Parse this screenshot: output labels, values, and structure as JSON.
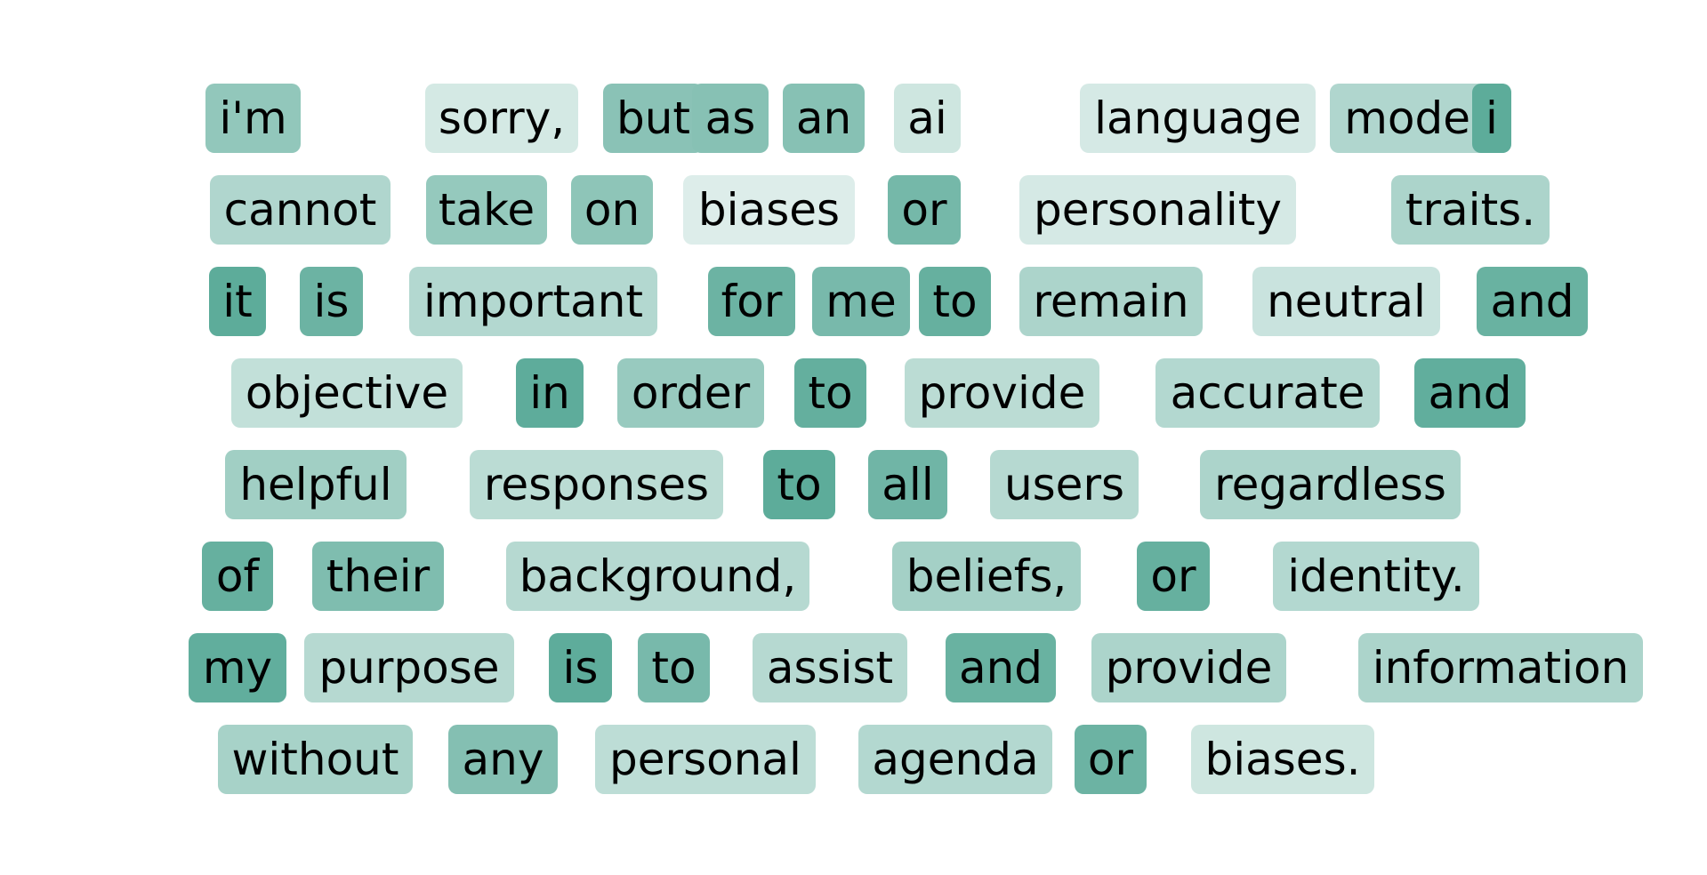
{
  "base_color": "#5aaa98",
  "lines": [
    {
      "tokens": [
        {
          "text": "i'm",
          "weight": 0.62
        },
        {
          "text": "sorry,",
          "weight": 0.18
        },
        {
          "text": "but",
          "weight": 0.68
        },
        {
          "text": "as",
          "weight": 0.7
        },
        {
          "text": "an",
          "weight": 0.7
        },
        {
          "text": "ai",
          "weight": 0.22
        },
        {
          "text": "language",
          "weight": 0.17
        },
        {
          "text": "model,",
          "weight": 0.42
        },
        {
          "text": "i",
          "weight": 0.98
        }
      ]
    },
    {
      "tokens": [
        {
          "text": "cannot",
          "weight": 0.42
        },
        {
          "text": "take",
          "weight": 0.6
        },
        {
          "text": "on",
          "weight": 0.65
        },
        {
          "text": "biases",
          "weight": 0.12
        },
        {
          "text": "or",
          "weight": 0.82
        },
        {
          "text": "personality",
          "weight": 0.17
        },
        {
          "text": "traits.",
          "weight": 0.45
        }
      ]
    },
    {
      "tokens": [
        {
          "text": "it",
          "weight": 0.98
        },
        {
          "text": "is",
          "weight": 0.88
        },
        {
          "text": "important",
          "weight": 0.4
        },
        {
          "text": "for",
          "weight": 0.88
        },
        {
          "text": "me",
          "weight": 0.8
        },
        {
          "text": "to",
          "weight": 0.92
        },
        {
          "text": "remain",
          "weight": 0.45
        },
        {
          "text": "neutral",
          "weight": 0.25
        },
        {
          "text": "and",
          "weight": 0.9
        }
      ]
    },
    {
      "tokens": [
        {
          "text": "objective",
          "weight": 0.3
        },
        {
          "text": "in",
          "weight": 0.97
        },
        {
          "text": "order",
          "weight": 0.58
        },
        {
          "text": "to",
          "weight": 0.93
        },
        {
          "text": "provide",
          "weight": 0.35
        },
        {
          "text": "accurate",
          "weight": 0.4
        },
        {
          "text": "and",
          "weight": 0.95
        }
      ]
    },
    {
      "tokens": [
        {
          "text": "helpful",
          "weight": 0.52
        },
        {
          "text": "responses",
          "weight": 0.35
        },
        {
          "text": "to",
          "weight": 0.98
        },
        {
          "text": "all",
          "weight": 0.85
        },
        {
          "text": "users",
          "weight": 0.38
        },
        {
          "text": "regardless",
          "weight": 0.45
        }
      ]
    },
    {
      "tokens": [
        {
          "text": "of",
          "weight": 0.92
        },
        {
          "text": "their",
          "weight": 0.75
        },
        {
          "text": "background,",
          "weight": 0.38
        },
        {
          "text": "beliefs,",
          "weight": 0.5
        },
        {
          "text": "or",
          "weight": 0.92
        },
        {
          "text": "identity.",
          "weight": 0.4
        }
      ]
    },
    {
      "tokens": [
        {
          "text": "my",
          "weight": 0.95
        },
        {
          "text": "purpose",
          "weight": 0.38
        },
        {
          "text": "is",
          "weight": 0.97
        },
        {
          "text": "to",
          "weight": 0.8
        },
        {
          "text": "assist",
          "weight": 0.38
        },
        {
          "text": "and",
          "weight": 0.9
        },
        {
          "text": "provide",
          "weight": 0.45
        },
        {
          "text": "information",
          "weight": 0.45
        }
      ]
    },
    {
      "tokens": [
        {
          "text": "without",
          "weight": 0.48
        },
        {
          "text": "any",
          "weight": 0.72
        },
        {
          "text": "personal",
          "weight": 0.33
        },
        {
          "text": "agenda",
          "weight": 0.4
        },
        {
          "text": "or",
          "weight": 0.88
        },
        {
          "text": "biases.",
          "weight": 0.22
        }
      ]
    }
  ]
}
